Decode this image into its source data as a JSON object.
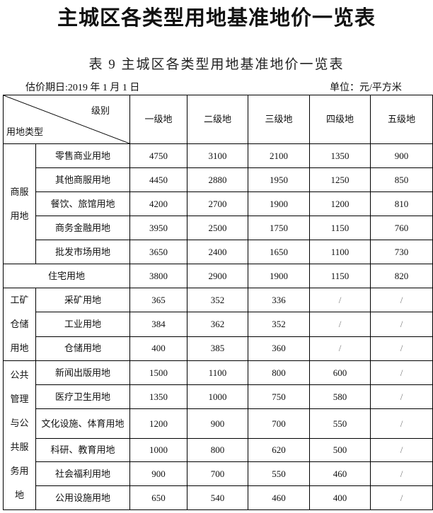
{
  "title": "主城区各类型用地基准地价一览表",
  "subtitle": "表 9 主城区各类型用地基准地价一览表",
  "date": "估价期日:2019 年 1 月 1 日",
  "unit": "单位：元/平方米",
  "header": {
    "grade_label": "级别",
    "type_label": "用地类型",
    "grades": [
      "一级地",
      "二级地",
      "三级地",
      "四级地",
      "五级地"
    ]
  },
  "groups": [
    {
      "name": "商服用地",
      "rows": [
        {
          "type": "零售商业用地",
          "values": [
            "4750",
            "3100",
            "2100",
            "1350",
            "900"
          ]
        },
        {
          "type": "其他商服用地",
          "values": [
            "4450",
            "2880",
            "1950",
            "1250",
            "850"
          ]
        },
        {
          "type": "餐饮、旅馆用地",
          "values": [
            "4200",
            "2700",
            "1900",
            "1200",
            "810"
          ]
        },
        {
          "type": "商务金融用地",
          "values": [
            "3950",
            "2500",
            "1750",
            "1150",
            "760"
          ]
        },
        {
          "type": "批发市场用地",
          "values": [
            "3650",
            "2400",
            "1650",
            "1100",
            "730"
          ]
        }
      ]
    },
    {
      "name": "",
      "rows": [
        {
          "type": "住宅用地",
          "values": [
            "3800",
            "2900",
            "1900",
            "1150",
            "820"
          ]
        }
      ]
    },
    {
      "name": "工矿仓储用地",
      "rows": [
        {
          "type": "采矿用地",
          "values": [
            "365",
            "352",
            "336",
            "/",
            "/"
          ]
        },
        {
          "type": "工业用地",
          "values": [
            "384",
            "362",
            "352",
            "/",
            "/"
          ]
        },
        {
          "type": "仓储用地",
          "values": [
            "400",
            "385",
            "360",
            "/",
            "/"
          ]
        }
      ]
    },
    {
      "name": "公共管理与公共服务用地",
      "rows": [
        {
          "type": "新闻出版用地",
          "values": [
            "1500",
            "1100",
            "800",
            "600",
            "/"
          ]
        },
        {
          "type": "医疗卫生用地",
          "values": [
            "1350",
            "1000",
            "750",
            "580",
            "/"
          ]
        },
        {
          "type": "文化设施、体育用地",
          "values": [
            "1200",
            "900",
            "700",
            "550",
            "/"
          ]
        },
        {
          "type": "科研、教育用地",
          "values": [
            "1000",
            "800",
            "620",
            "500",
            "/"
          ]
        },
        {
          "type": "社会福利用地",
          "values": [
            "900",
            "700",
            "550",
            "460",
            "/"
          ]
        },
        {
          "type": "公用设施用地",
          "values": [
            "650",
            "540",
            "460",
            "400",
            "/"
          ]
        }
      ]
    }
  ]
}
